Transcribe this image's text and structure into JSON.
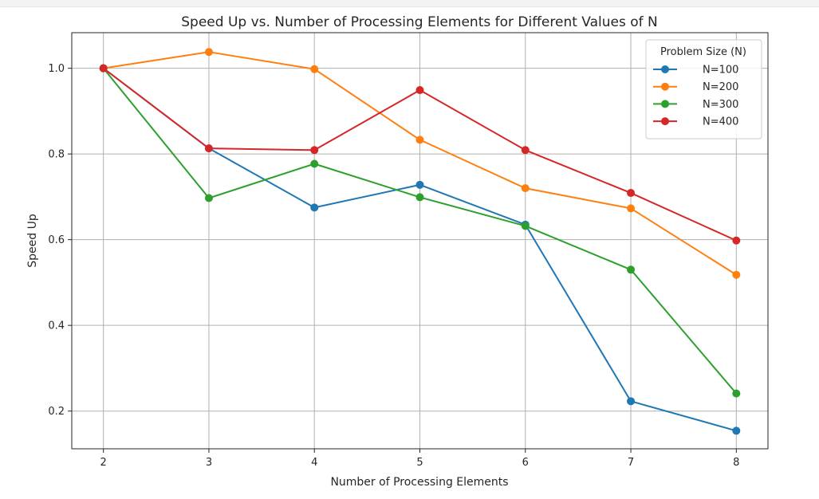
{
  "chart_data": {
    "type": "line",
    "title": "Speed Up vs. Number of Processing Elements for Different Values of N",
    "xlabel": "Number of Processing Elements",
    "ylabel": "Speed Up",
    "x": [
      2,
      3,
      4,
      5,
      6,
      7,
      8
    ],
    "xlim": [
      1.7,
      8.3
    ],
    "ylim": [
      0.112,
      1.083
    ],
    "xticks": [
      2,
      3,
      4,
      5,
      6,
      7,
      8
    ],
    "yticks": [
      0.2,
      0.4,
      0.6,
      0.8,
      1.0
    ],
    "ytick_labels": [
      "0.2",
      "0.4",
      "0.6",
      "0.8",
      "1.0"
    ],
    "grid": true,
    "legend": {
      "title": "Problem Size (N)",
      "placement": "top-right"
    },
    "series": [
      {
        "name": "N=100",
        "color": "#1f77b4",
        "values": [
          1.0,
          0.813,
          0.675,
          0.728,
          0.635,
          0.223,
          0.154
        ]
      },
      {
        "name": "N=200",
        "color": "#ff7f0e",
        "values": [
          1.0,
          1.038,
          0.998,
          0.833,
          0.72,
          0.673,
          0.518
        ]
      },
      {
        "name": "N=300",
        "color": "#2ca02c",
        "values": [
          1.0,
          0.697,
          0.777,
          0.699,
          0.632,
          0.53,
          0.241
        ]
      },
      {
        "name": "N=400",
        "color": "#d62728",
        "values": [
          1.0,
          0.813,
          0.809,
          0.949,
          0.809,
          0.709,
          0.598
        ]
      }
    ]
  }
}
